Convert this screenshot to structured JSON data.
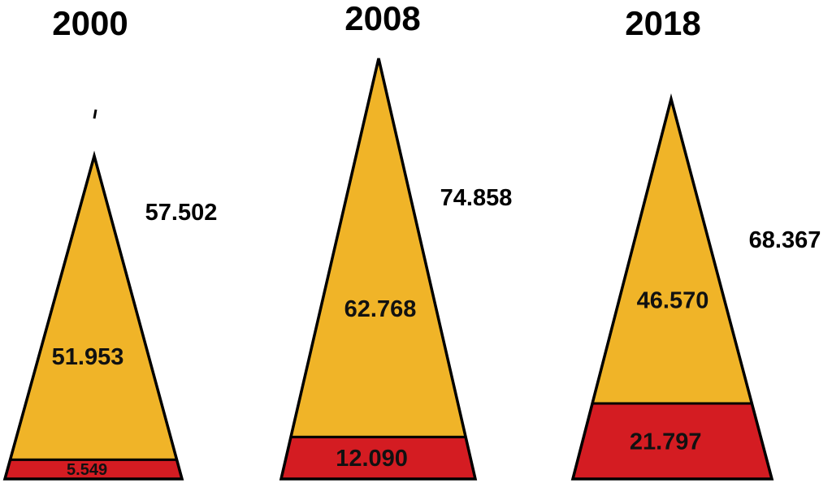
{
  "chart_data": {
    "type": "bar",
    "categories": [
      "2000",
      "2008",
      "2018"
    ],
    "series": [
      {
        "values": [
          51.953,
          62.768,
          46.57
        ],
        "value_labels": [
          "51.953",
          "62.768",
          "46.570"
        ],
        "color": "#f0b428"
      },
      {
        "values": [
          5.549,
          12.09,
          21.797
        ],
        "value_labels": [
          "5.549",
          "12.090",
          "21.797"
        ],
        "color": "#d41c22"
      }
    ],
    "totals": [
      57.502,
      74.858,
      68.367
    ],
    "total_labels": [
      "57.502",
      "74.858",
      "68.367"
    ],
    "title": "",
    "xlabel": "",
    "ylabel": "",
    "grid": false,
    "legend": "none"
  }
}
